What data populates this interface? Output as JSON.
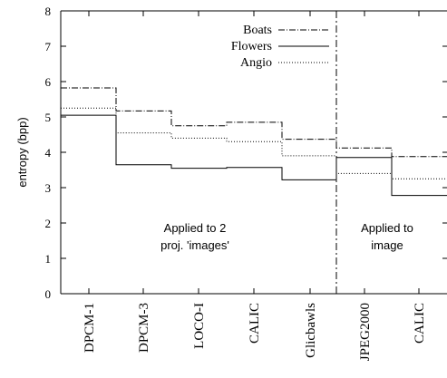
{
  "chart_data": {
    "type": "line",
    "ylabel": "entropy (bpp)",
    "xlabel": "",
    "ylim": [
      0,
      8
    ],
    "yticks": [
      0,
      1,
      2,
      3,
      4,
      5,
      6,
      7,
      8
    ],
    "categories": [
      "DPCM-1",
      "DPCM-3",
      "LOCO-I",
      "CALIC",
      "Glicbawls",
      "JPEG2000",
      "CALIC"
    ],
    "series": [
      {
        "name": "Boats",
        "style": "dash-dot",
        "values": [
          5.82,
          5.17,
          4.75,
          4.85,
          4.37,
          4.12,
          3.88
        ]
      },
      {
        "name": "Flowers",
        "style": "solid",
        "values": [
          5.05,
          3.65,
          3.55,
          3.57,
          3.22,
          3.85,
          2.78
        ]
      },
      {
        "name": "Angio",
        "style": "dotted",
        "values": [
          5.25,
          4.55,
          4.4,
          4.3,
          3.9,
          3.4,
          3.25
        ]
      }
    ],
    "legend_position": "top-right",
    "grid": false,
    "annotations": [
      "Applied to 2",
      "proj. 'images'",
      "Applied to",
      "image"
    ],
    "color": "#000000"
  }
}
